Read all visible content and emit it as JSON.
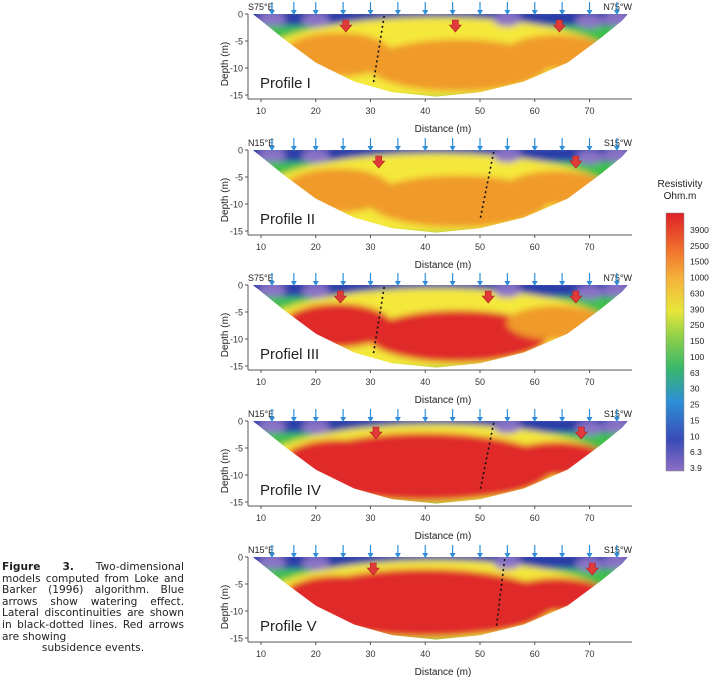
{
  "caption": {
    "label": "Figure 3.",
    "text": "Two-dimensional models computed from Loke and Barker (1996) algorithm. Blue arrows show watering effect. Lateral discontinuities are shown in black-dotted lines. Red arrows are showing",
    "last_line": "subsidence events."
  },
  "axes": {
    "x_label": "Distance (m)",
    "y_label": "Depth (m)",
    "x_ticks": [
      10,
      20,
      30,
      40,
      50,
      60,
      70
    ],
    "y_ticks": [
      0,
      -5,
      -10,
      -15
    ]
  },
  "profiles": [
    {
      "name": "Profile I",
      "orientation_left": "S75°E",
      "orientation_right": "N75°W",
      "watering_arrows_m": [
        12,
        16,
        20,
        25,
        30,
        35,
        40,
        45,
        50,
        55,
        60,
        65,
        70,
        75
      ],
      "subsidence_arrows_m": [
        25.5,
        45.5,
        64.5
      ],
      "discontinuity_top_m": 32.5,
      "discontinuity_bottom_m": 30.5
    },
    {
      "name": "Profile II",
      "orientation_left": "N15°E",
      "orientation_right": "S15°W",
      "watering_arrows_m": [
        12,
        16,
        20,
        25,
        30,
        35,
        40,
        45,
        50,
        55,
        60,
        65,
        70,
        75
      ],
      "subsidence_arrows_m": [
        31.5,
        67.5
      ],
      "discontinuity_top_m": 52.5,
      "discontinuity_bottom_m": 50
    },
    {
      "name": "Profiel III",
      "orientation_left": "S75°E",
      "orientation_right": "N75°W",
      "watering_arrows_m": [
        12,
        16,
        20,
        25,
        30,
        35,
        40,
        45,
        50,
        55,
        60,
        65,
        70,
        75
      ],
      "subsidence_arrows_m": [
        24.5,
        51.5,
        67.5
      ],
      "discontinuity_top_m": 32.5,
      "discontinuity_bottom_m": 30.5
    },
    {
      "name": "Profile IV",
      "orientation_left": "N15°E",
      "orientation_right": "S15°W",
      "watering_arrows_m": [
        12,
        16,
        20,
        25,
        30,
        35,
        40,
        45,
        50,
        55,
        60,
        65,
        70,
        75
      ],
      "subsidence_arrows_m": [
        31,
        68.5
      ],
      "discontinuity_top_m": 52.5,
      "discontinuity_bottom_m": 50
    },
    {
      "name": "Profile V",
      "orientation_left": "N15°E",
      "orientation_right": "S15°W",
      "watering_arrows_m": [
        12,
        16,
        20,
        25,
        30,
        35,
        40,
        45,
        50,
        55,
        60,
        65,
        70,
        75
      ],
      "subsidence_arrows_m": [
        30.5,
        70.5
      ],
      "discontinuity_top_m": 54.5,
      "discontinuity_bottom_m": 53
    }
  ],
  "legend": {
    "title_line1": "Resistivity",
    "title_line2": "Ohm.m",
    "values": [
      "3900",
      "2500",
      "1500",
      "1000",
      "630",
      "390",
      "250",
      "150",
      "100",
      "63",
      "30",
      "25",
      "15",
      "10",
      "6.3",
      "3.9"
    ]
  },
  "colors": {
    "low": "#8a73c6",
    "blue": "#2c3ea8",
    "green": "#3fbf4e",
    "yellow": "#f4e83a",
    "orange": "#f09a2c",
    "red": "#e02b2b",
    "watering_arrow": "#2e8fd8",
    "subsidence_arrow": "#e03a3a"
  }
}
